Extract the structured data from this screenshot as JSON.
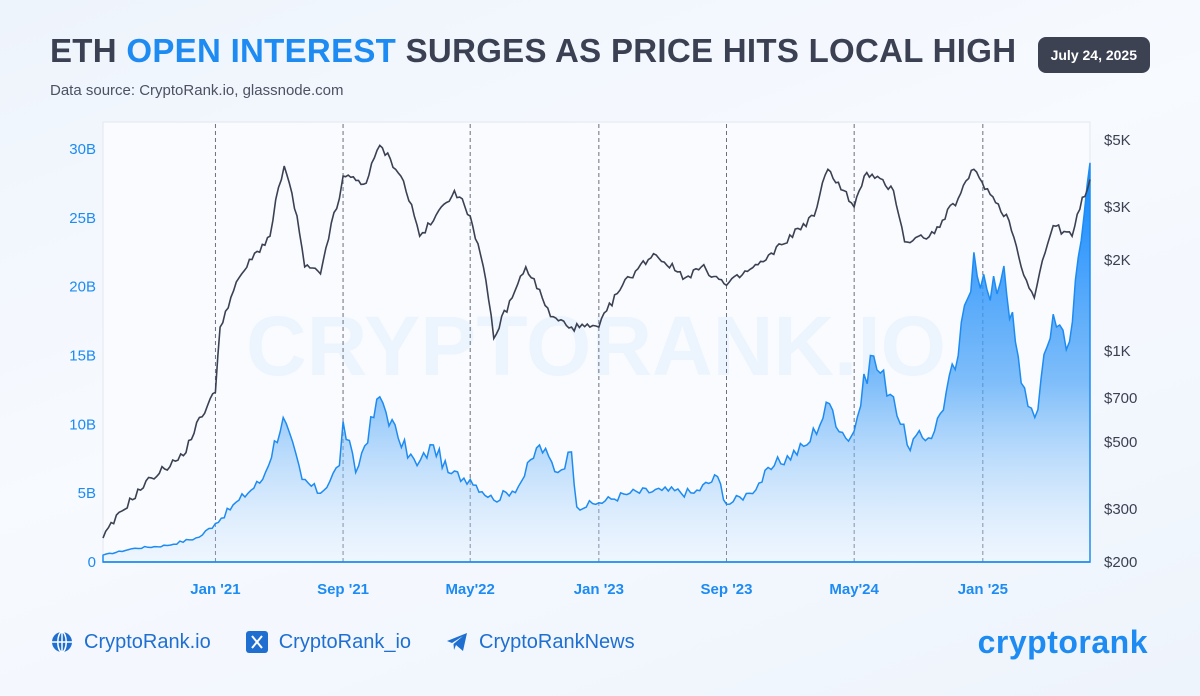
{
  "header": {
    "title_part1": "ETH ",
    "title_highlight": "OPEN INTEREST",
    "title_part2": " SURGES AS PRICE HITS LOCAL HIGH",
    "subtitle": "Data source: CryptoRank.io, glassnode.com",
    "date_badge": "July 24, 2025"
  },
  "watermark": "CRYPTORANK.IO",
  "colors": {
    "accent": "#1d8bf1",
    "price_line": "#3b4152",
    "axis_blue": "#1d8bf1",
    "axis_dark": "#3b4152"
  },
  "footer": {
    "site": "CryptoRank.io",
    "x_handle": "CryptoRank_io",
    "telegram": "CryptoRankNews",
    "brand": "cryptorank",
    "icons": [
      "globe-icon",
      "x-icon",
      "telegram-icon"
    ]
  },
  "chart_data": {
    "type": "area",
    "series_types": {
      "open_interest": "area",
      "price": "line"
    },
    "grid": false,
    "x_range": [
      "2020-06-01",
      "2025-07-24"
    ],
    "x_ticks": [
      {
        "label": "Jan '21",
        "date": "2021-01-01"
      },
      {
        "label": "Sep '21",
        "date": "2021-09-01"
      },
      {
        "label": "May'22",
        "date": "2022-05-01"
      },
      {
        "label": "Jan '23",
        "date": "2023-01-01"
      },
      {
        "label": "Sep '23",
        "date": "2023-09-01"
      },
      {
        "label": "May'24",
        "date": "2024-05-01"
      },
      {
        "label": "Jan '25",
        "date": "2025-01-01"
      }
    ],
    "y_left": {
      "min": 0,
      "max": 30,
      "unit": "B",
      "ticks": [
        0,
        5,
        10,
        15,
        20,
        25,
        30
      ],
      "tick_labels": [
        "0",
        "5B",
        "10B",
        "15B",
        "20B",
        "25B",
        "30B"
      ]
    },
    "y_right": {
      "scale": "log",
      "min": 200,
      "max": 5000,
      "ticks": [
        200,
        300,
        500,
        700,
        1000,
        2000,
        3000,
        5000
      ],
      "tick_labels": [
        "$200",
        "$300",
        "$500",
        "$700",
        "$1K",
        "$2K",
        "$3K",
        "$5K"
      ]
    },
    "series": [
      {
        "id": "open_interest",
        "axis": "left",
        "unit": "B",
        "points": [
          [
            "2020-06-01",
            0.5
          ],
          [
            "2020-08-01",
            1.0
          ],
          [
            "2020-10-01",
            1.2
          ],
          [
            "2020-12-01",
            1.8
          ],
          [
            "2021-01-01",
            2.8
          ],
          [
            "2021-02-15",
            4.5
          ],
          [
            "2021-04-01",
            6.0
          ],
          [
            "2021-05-10",
            10.5
          ],
          [
            "2021-06-15",
            6.0
          ],
          [
            "2021-07-20",
            5.0
          ],
          [
            "2021-08-25",
            7.0
          ],
          [
            "2021-09-01",
            10.2
          ],
          [
            "2021-09-25",
            6.5
          ],
          [
            "2021-11-10",
            12.0
          ],
          [
            "2021-12-15",
            9.0
          ],
          [
            "2022-01-20",
            7.0
          ],
          [
            "2022-02-20",
            8.5
          ],
          [
            "2022-03-20",
            6.5
          ],
          [
            "2022-05-01",
            6.0
          ],
          [
            "2022-06-15",
            4.5
          ],
          [
            "2022-08-01",
            5.5
          ],
          [
            "2022-09-10",
            8.5
          ],
          [
            "2022-10-15",
            6.5
          ],
          [
            "2022-11-10",
            8.0
          ],
          [
            "2022-11-20",
            4.0
          ],
          [
            "2023-01-01",
            4.3
          ],
          [
            "2023-03-01",
            5.0
          ],
          [
            "2023-05-01",
            5.2
          ],
          [
            "2023-07-01",
            5.0
          ],
          [
            "2023-08-15",
            6.2
          ],
          [
            "2023-09-01",
            4.2
          ],
          [
            "2023-10-15",
            5.0
          ],
          [
            "2023-12-01",
            7.0
          ],
          [
            "2024-02-01",
            8.5
          ],
          [
            "2024-03-15",
            11.5
          ],
          [
            "2024-04-15",
            9.0
          ],
          [
            "2024-05-01",
            9.5
          ],
          [
            "2024-06-01",
            15.0
          ],
          [
            "2024-07-15",
            12.0
          ],
          [
            "2024-08-10",
            8.5
          ],
          [
            "2024-10-01",
            9.5
          ],
          [
            "2024-11-15",
            15.0
          ],
          [
            "2024-12-15",
            22.5
          ],
          [
            "2025-01-15",
            19.0
          ],
          [
            "2025-02-10",
            21.5
          ],
          [
            "2025-03-15",
            13.0
          ],
          [
            "2025-04-10",
            10.5
          ],
          [
            "2025-05-15",
            18.0
          ],
          [
            "2025-06-15",
            16.0
          ],
          [
            "2025-07-24",
            29.0
          ]
        ]
      },
      {
        "id": "price",
        "axis": "right",
        "unit": "USD",
        "points": [
          [
            "2020-06-01",
            240
          ],
          [
            "2020-09-01",
            380
          ],
          [
            "2020-11-01",
            450
          ],
          [
            "2021-01-01",
            730
          ],
          [
            "2021-01-10",
            1200
          ],
          [
            "2021-02-20",
            1800
          ],
          [
            "2021-04-15",
            2400
          ],
          [
            "2021-05-12",
            4100
          ],
          [
            "2021-06-20",
            1900
          ],
          [
            "2021-07-20",
            1800
          ],
          [
            "2021-08-25",
            3200
          ],
          [
            "2021-09-01",
            3800
          ],
          [
            "2021-10-15",
            3600
          ],
          [
            "2021-11-10",
            4800
          ],
          [
            "2021-12-20",
            3800
          ],
          [
            "2022-01-25",
            2400
          ],
          [
            "2022-02-20",
            2700
          ],
          [
            "2022-04-01",
            3400
          ],
          [
            "2022-05-01",
            2800
          ],
          [
            "2022-06-15",
            1100
          ],
          [
            "2022-07-20",
            1500
          ],
          [
            "2022-08-15",
            1900
          ],
          [
            "2022-10-01",
            1300
          ],
          [
            "2022-11-10",
            1200
          ],
          [
            "2022-12-15",
            1200
          ],
          [
            "2023-01-01",
            1200
          ],
          [
            "2023-02-15",
            1650
          ],
          [
            "2023-04-15",
            2100
          ],
          [
            "2023-06-15",
            1750
          ],
          [
            "2023-07-15",
            1900
          ],
          [
            "2023-09-01",
            1650
          ],
          [
            "2023-11-15",
            2000
          ],
          [
            "2023-12-15",
            2250
          ],
          [
            "2024-02-15",
            2800
          ],
          [
            "2024-03-12",
            4000
          ],
          [
            "2024-05-01",
            3000
          ],
          [
            "2024-05-25",
            3900
          ],
          [
            "2024-07-15",
            3400
          ],
          [
            "2024-08-05",
            2300
          ],
          [
            "2024-10-01",
            2450
          ],
          [
            "2024-11-15",
            3200
          ],
          [
            "2024-12-15",
            4000
          ],
          [
            "2025-01-15",
            3300
          ],
          [
            "2025-02-20",
            2700
          ],
          [
            "2025-03-15",
            1900
          ],
          [
            "2025-04-09",
            1500
          ],
          [
            "2025-05-15",
            2600
          ],
          [
            "2025-06-20",
            2400
          ],
          [
            "2025-07-24",
            3700
          ]
        ]
      }
    ]
  }
}
